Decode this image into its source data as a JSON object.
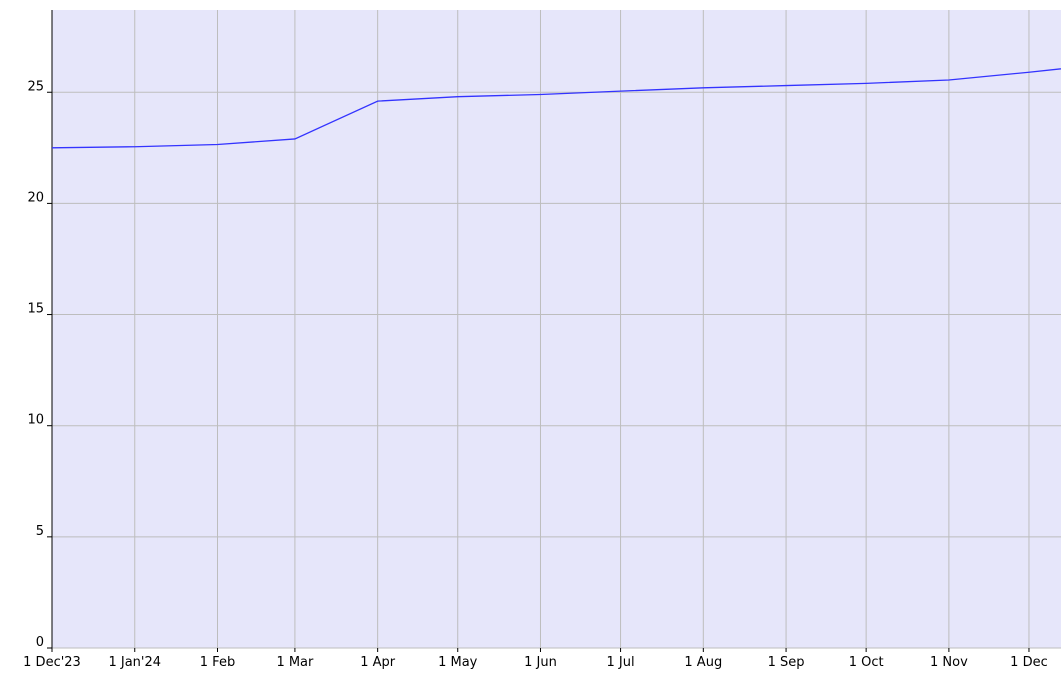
{
  "chart_data": {
    "type": "line",
    "x": [
      "2023-12-01",
      "2024-01-01",
      "2024-02-01",
      "2024-03-01",
      "2024-04-01",
      "2024-05-01",
      "2024-06-01",
      "2024-07-01",
      "2024-08-01",
      "2024-09-01",
      "2024-10-01",
      "2024-11-01",
      "2024-12-01",
      "2025-01-01"
    ],
    "values": [
      22.5,
      22.55,
      22.65,
      22.9,
      24.6,
      24.8,
      24.9,
      25.05,
      25.2,
      25.3,
      25.4,
      25.55,
      25.9,
      26.3
    ],
    "color": "#3333ff",
    "background": "#e6e6fa",
    "xlim": [
      "2023-12-01",
      "2024-12-13"
    ],
    "xticks": [
      {
        "value": "2023-12-01",
        "label": "1 Dec'23"
      },
      {
        "value": "2024-01-01",
        "label": "1 Jan'24"
      },
      {
        "value": "2024-02-01",
        "label": "1 Feb"
      },
      {
        "value": "2024-03-01",
        "label": "1 Mar"
      },
      {
        "value": "2024-04-01",
        "label": "1 Apr"
      },
      {
        "value": "2024-05-01",
        "label": "1 May"
      },
      {
        "value": "2024-06-01",
        "label": "1 Jun"
      },
      {
        "value": "2024-07-01",
        "label": "1 Jul"
      },
      {
        "value": "2024-08-01",
        "label": "1 Aug"
      },
      {
        "value": "2024-09-01",
        "label": "1 Sep"
      },
      {
        "value": "2024-10-01",
        "label": "1 Oct"
      },
      {
        "value": "2024-11-01",
        "label": "1 Nov"
      },
      {
        "value": "2024-12-01",
        "label": "1 Dec"
      }
    ],
    "ylim": [
      0,
      28.7
    ],
    "yticks": [
      0,
      5,
      10,
      15,
      20,
      25
    ],
    "grid": true
  }
}
